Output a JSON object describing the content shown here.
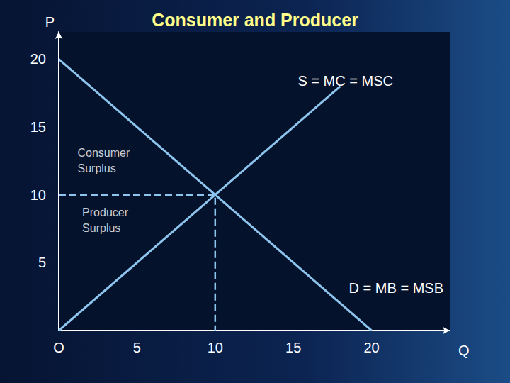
{
  "chart_data": {
    "type": "line",
    "title": "Consumer and Producer",
    "x_label": "Q",
    "y_label": "P",
    "xlim": [
      0,
      25
    ],
    "ylim": [
      0,
      22
    ],
    "xticks": [
      {
        "value": 0,
        "label": "O"
      },
      5,
      10,
      15,
      20
    ],
    "yticks": [
      5,
      10,
      15,
      20
    ],
    "grid": false,
    "series": [
      {
        "name": "S = MC = MSC",
        "color": "#8ec5ee",
        "x": [
          0,
          18
        ],
        "values": [
          0,
          18
        ]
      },
      {
        "name": "D = MB = MSB",
        "color": "#8ec5ee",
        "x": [
          0,
          20
        ],
        "values": [
          20,
          0
        ]
      }
    ],
    "equilibrium": {
      "x": 10,
      "y": 10,
      "color": "#8ec5ee",
      "line_style": "dashed"
    },
    "annotations": [
      {
        "text": "Consumer Surplus",
        "x": 1.2,
        "y": 12.5
      },
      {
        "text": "Producer Surplus",
        "x": 1.5,
        "y": 8.1
      }
    ]
  }
}
